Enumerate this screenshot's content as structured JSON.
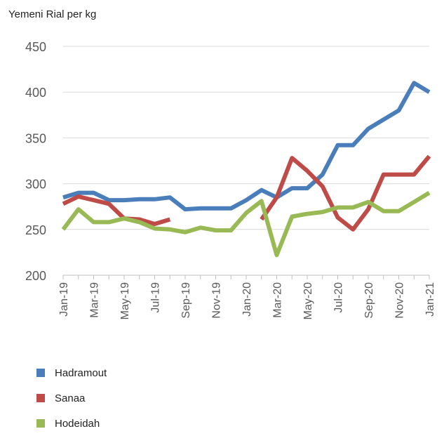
{
  "chart_data": {
    "type": "line",
    "ylabel": "Yemeni Rial per kg",
    "xlabel": "",
    "title": "",
    "ylim": [
      200,
      450
    ],
    "yticks": [
      200,
      250,
      300,
      350,
      400,
      450
    ],
    "grid": true,
    "legend_position": "bottom-left",
    "x": [
      "Jan-19",
      "Feb-19",
      "Mar-19",
      "Apr-19",
      "May-19",
      "Jun-19",
      "Jul-19",
      "Aug-19",
      "Sep-19",
      "Oct-19",
      "Nov-19",
      "Dec-19",
      "Jan-20",
      "Feb-20",
      "Mar-20",
      "Apr-20",
      "May-20",
      "Jun-20",
      "Jul-20",
      "Aug-20",
      "Sep-20",
      "Oct-20",
      "Nov-20",
      "Dec-20",
      "Jan-21"
    ],
    "xtick_labels": [
      "Jan-19",
      "Mar-19",
      "May-19",
      "Jul-19",
      "Sep-19",
      "Nov-19",
      "Jan-20",
      "Mar-20",
      "May-20",
      "Jul-20",
      "Sep-20",
      "Nov-20",
      "Jan-21"
    ],
    "xtick_indices": [
      0,
      2,
      4,
      6,
      8,
      10,
      12,
      14,
      16,
      18,
      20,
      22,
      24
    ],
    "series": [
      {
        "name": "Hadramout",
        "color": "#4a7ebb",
        "values": [
          285,
          290,
          290,
          282,
          282,
          283,
          283,
          285,
          272,
          273,
          273,
          273,
          282,
          293,
          285,
          295,
          295,
          310,
          342,
          342,
          360,
          370,
          380,
          410,
          400
        ]
      },
      {
        "name": "Sanaa",
        "color": "#be4b48",
        "values": [
          278,
          286,
          282,
          278,
          262,
          261,
          256,
          261,
          null,
          null,
          null,
          null,
          null,
          261,
          285,
          328,
          314,
          297,
          263,
          250,
          272,
          310,
          310,
          310,
          330
        ]
      },
      {
        "name": "Hodeidah",
        "color": "#98b954",
        "values": [
          250,
          272,
          258,
          258,
          262,
          258,
          251,
          250,
          247,
          252,
          249,
          249,
          268,
          281,
          222,
          264,
          267,
          269,
          274,
          274,
          280,
          270,
          270,
          280,
          290
        ]
      }
    ]
  }
}
